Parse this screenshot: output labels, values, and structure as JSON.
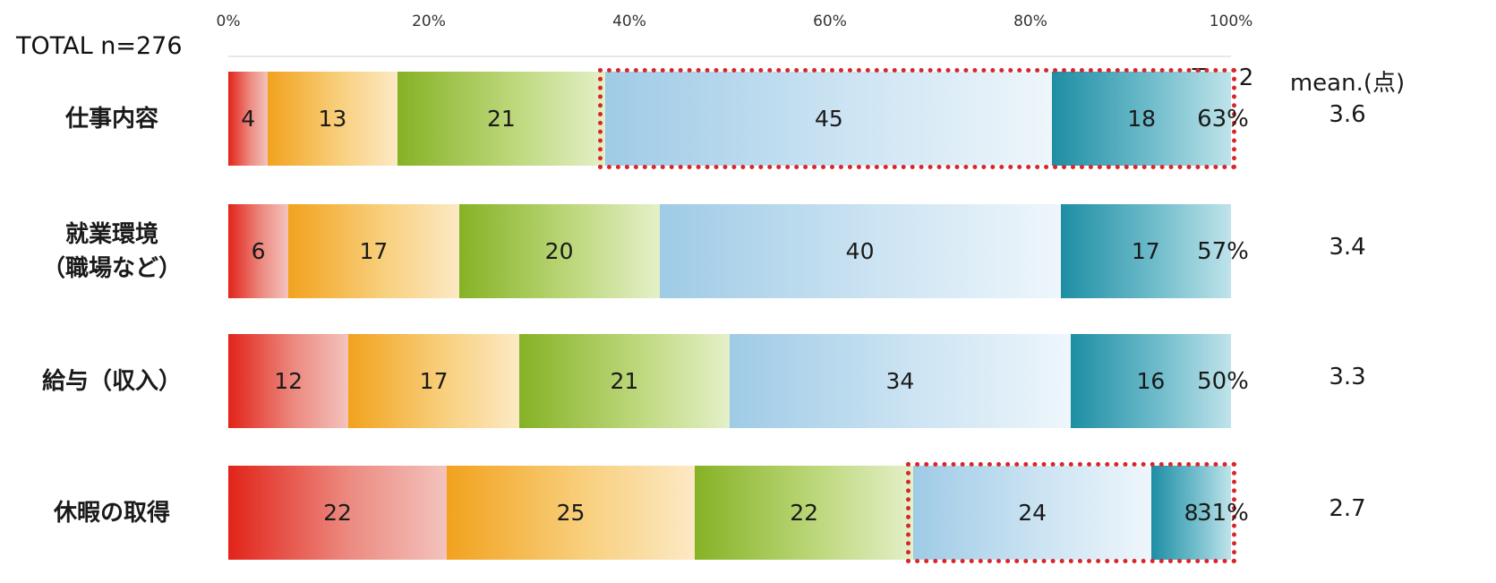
{
  "chart_data": {
    "type": "bar",
    "orientation": "horizontal",
    "stacked": true,
    "sample_label": "TOTAL n=276",
    "x_ticks": [
      "0%",
      "20%",
      "40%",
      "60%",
      "80%",
      "100%"
    ],
    "xlim": [
      0,
      100
    ],
    "categories": [
      {
        "label_lines": [
          "仕事内容"
        ],
        "segments": [
          4,
          13,
          21,
          45,
          18
        ],
        "top2": "63%",
        "mean": "3.6",
        "highlight_top2": true
      },
      {
        "label_lines": [
          "就業環境",
          "（職場など）"
        ],
        "segments": [
          6,
          17,
          20,
          40,
          17
        ],
        "top2": "57%",
        "mean": "3.4",
        "highlight_top2": false
      },
      {
        "label_lines": [
          "給与（収入）"
        ],
        "segments": [
          12,
          17,
          21,
          34,
          16
        ],
        "top2": "50%",
        "mean": "3.3",
        "highlight_top2": false
      },
      {
        "label_lines": [
          "休暇の取得"
        ],
        "segments": [
          22,
          25,
          22,
          24,
          8
        ],
        "top2": "31%",
        "mean": "2.7",
        "highlight_top2": true
      }
    ],
    "columns": {
      "top2": "Top 2",
      "mean": "mean.(点)"
    },
    "segment_colors": [
      "#e2241a",
      "#f2a21e",
      "#86b225",
      "#9fcbe6",
      "#1e8ea4"
    ],
    "highlight_color": "#d8262b",
    "grid": false,
    "legend": "none"
  }
}
